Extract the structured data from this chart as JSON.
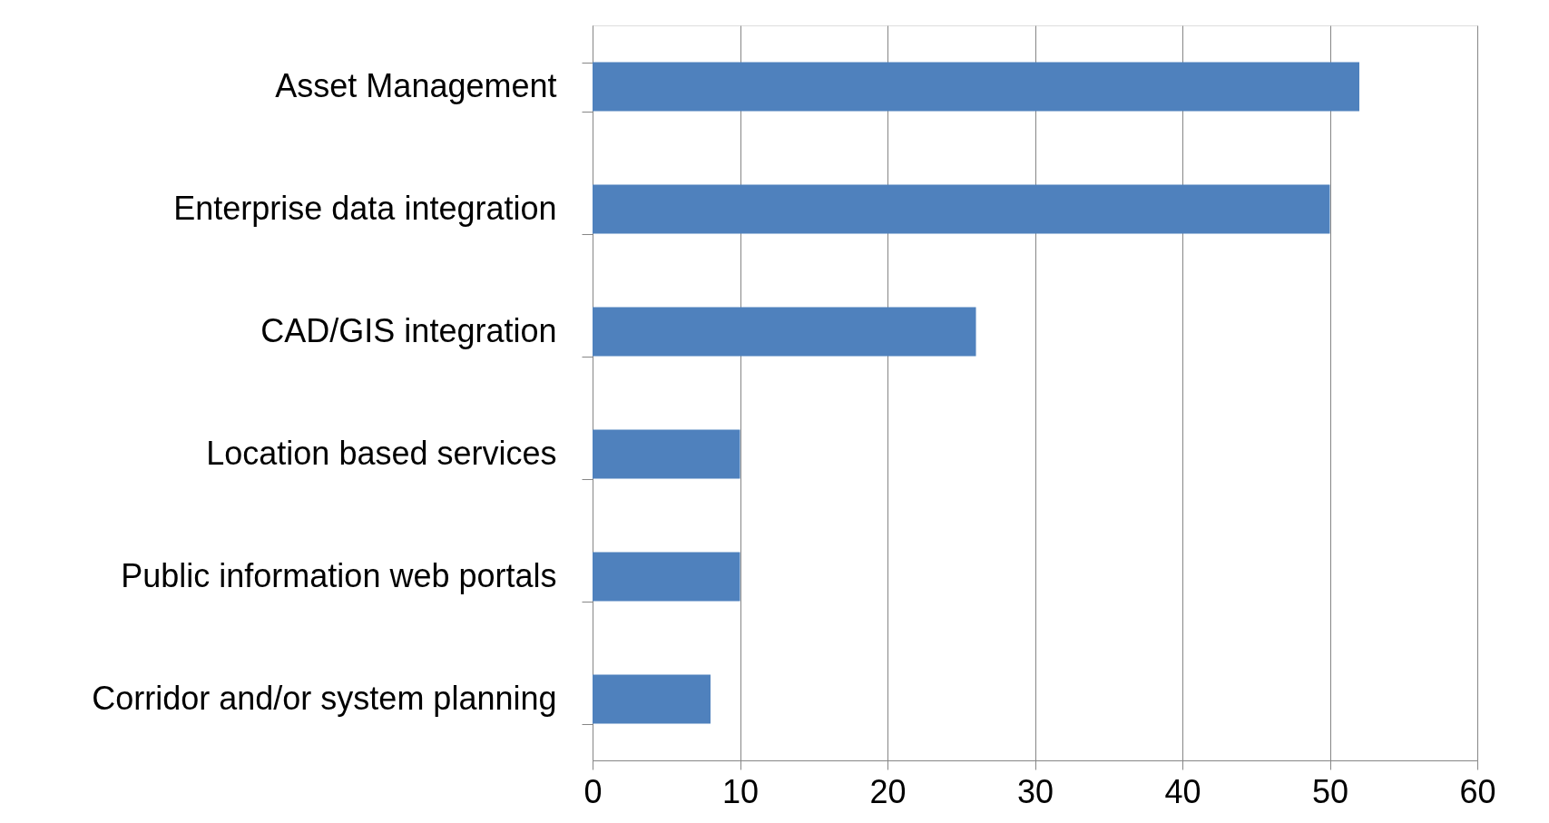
{
  "chart_data": {
    "type": "bar",
    "orientation": "horizontal",
    "categories": [
      "Asset Management",
      "Enterprise data integration",
      "CAD/GIS integration",
      "Location based services",
      "Public information web portals",
      "Corridor and/or system planning"
    ],
    "values": [
      52,
      50,
      26,
      10,
      10,
      8
    ],
    "color": "#4f81bd",
    "xlim": [
      0,
      60
    ],
    "xticks": [
      0,
      10,
      20,
      30,
      40,
      50,
      60
    ],
    "grid": "x"
  }
}
